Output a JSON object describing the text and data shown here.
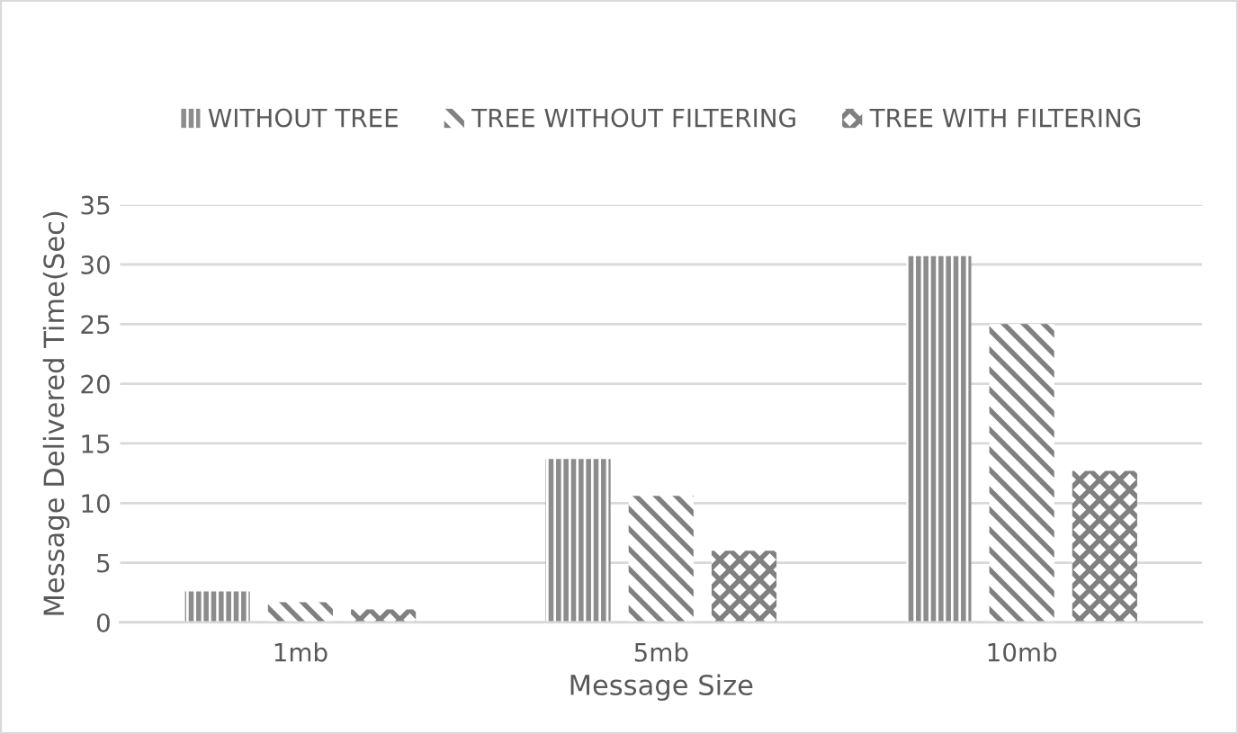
{
  "chart_data": {
    "type": "bar",
    "xlabel": "Message Size",
    "ylabel": "Message Delivered Time(Sec)",
    "categories": [
      "1mb",
      "5mb",
      "10mb"
    ],
    "series": [
      {
        "name": "WITHOUT TREE",
        "color": "#8c8c8c",
        "values": [
          2.6,
          13.7,
          30.7
        ]
      },
      {
        "name": "TREE WITHOUT FILTERING",
        "color": "#808080",
        "values": [
          1.7,
          10.6,
          25.0
        ]
      },
      {
        "name": "TREE WITH FILTERING",
        "color": "#808080",
        "values": [
          1.1,
          6.0,
          12.7
        ]
      }
    ],
    "ylim": [
      0,
      35
    ],
    "yticks": [
      0,
      5,
      10,
      15,
      20,
      25,
      30,
      35
    ],
    "grid": "y",
    "legend": "top"
  }
}
